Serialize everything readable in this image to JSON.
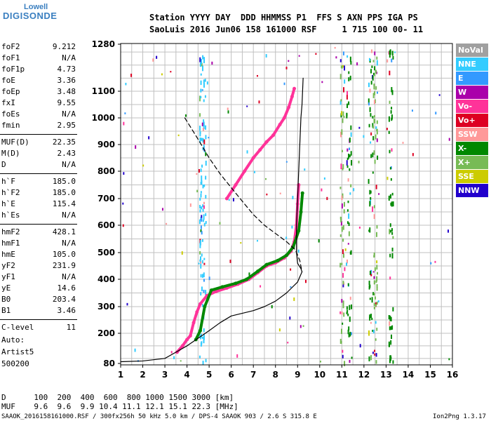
{
  "header": {
    "logo_line1": "Lowell",
    "logo_line2": "DIGISONDE",
    "line1": "Station YYYY DAY  DDD HHMMSS P1  FFS S AXN PPS IGA PS",
    "line2": "SaoLuis 2016 Jun06 158 161000 RSF     1 715 100 00- 11"
  },
  "params": [
    {
      "label": "foF2",
      "value": "9.212"
    },
    {
      "label": "foF1",
      "value": "N/A"
    },
    {
      "label": "foF1p",
      "value": "4.73"
    },
    {
      "label": "foE",
      "value": "3.36"
    },
    {
      "label": "foEp",
      "value": "3.48"
    },
    {
      "label": "fxI",
      "value": "9.55"
    },
    {
      "label": "foEs",
      "value": "N/A"
    },
    {
      "label": "fmin",
      "value": "2.95"
    },
    {
      "label": "MUF(D)",
      "value": "22.35"
    },
    {
      "label": "M(D)",
      "value": "2.43"
    },
    {
      "label": "D",
      "value": "N/A"
    },
    {
      "label": "h`F",
      "value": "185.0"
    },
    {
      "label": "h`F2",
      "value": "185.0"
    },
    {
      "label": "h`E",
      "value": "115.4"
    },
    {
      "label": "h`Es",
      "value": "N/A"
    },
    {
      "label": "hmF2",
      "value": "428.1"
    },
    {
      "label": "hmF1",
      "value": "N/A"
    },
    {
      "label": "hmE",
      "value": "105.0"
    },
    {
      "label": "yF2",
      "value": "231.9"
    },
    {
      "label": "yF1",
      "value": "N/A"
    },
    {
      "label": "yE",
      "value": "14.6"
    },
    {
      "label": "B0",
      "value": "203.4"
    },
    {
      "label": "B1",
      "value": "3.46"
    },
    {
      "label": "C-level",
      "value": "11"
    }
  ],
  "autoscaling": {
    "line1": "Auto:",
    "line2": "Artist5",
    "line3": "500200"
  },
  "legend": [
    {
      "label": "NoVal",
      "color": "#a0a0a0"
    },
    {
      "label": "NNE",
      "color": "#33ccff"
    },
    {
      "label": "E",
      "color": "#3399ff"
    },
    {
      "label": "W",
      "color": "#aa00aa"
    },
    {
      "label": "Vo-",
      "color": "#ff3399"
    },
    {
      "label": "Vo+",
      "color": "#dd0022"
    },
    {
      "label": "SSW",
      "color": "#ff9999"
    },
    {
      "label": "X-",
      "color": "#008800"
    },
    {
      "label": "X+",
      "color": "#77bb55"
    },
    {
      "label": "SSE",
      "color": "#cccc00"
    },
    {
      "label": "NNW",
      "color": "#2200cc"
    }
  ],
  "footer": {
    "d_row": "D      100  200  400  600  800 1000 1500 3000 [km]",
    "muf_row": "MUF    9.6  9.6  9.9 10.4 11.1 12.1 15.1 22.3 [MHz]",
    "file_info": "SAAOK_2016158161000.RSF / 300fx256h 50 kHz 5.0 km / DPS-4 SAAOK 903 / 2.6 S 315.8 E",
    "version": "Ion2Png 1.3.17"
  },
  "chart_data": {
    "type": "scatter",
    "xlim": [
      1,
      16
    ],
    "ylim": [
      80,
      1280
    ],
    "x_ticks": [
      "1",
      "2",
      "3",
      "4",
      "5",
      "6",
      "7",
      "8",
      "9",
      "10",
      "11",
      "12",
      "13",
      "14",
      "15",
      "16"
    ],
    "y_ticks": [
      "80",
      "200",
      "300",
      "400",
      "500",
      "600",
      "700",
      "800",
      "900",
      "1000",
      "1100",
      "1280"
    ],
    "grid": true,
    "series": [
      {
        "name": "O-trace",
        "color": "#ff3399",
        "points": [
          [
            3.55,
            125
          ],
          [
            3.8,
            150
          ],
          [
            4.0,
            175
          ],
          [
            4.15,
            190
          ],
          [
            4.3,
            240
          ],
          [
            4.45,
            280
          ],
          [
            4.6,
            310
          ],
          [
            4.9,
            340
          ],
          [
            5.3,
            355
          ],
          [
            5.8,
            368
          ],
          [
            6.3,
            382
          ],
          [
            6.8,
            400
          ],
          [
            7.2,
            425
          ],
          [
            7.6,
            450
          ],
          [
            8.0,
            462
          ],
          [
            8.4,
            480
          ],
          [
            8.7,
            505
          ],
          [
            8.85,
            540
          ],
          [
            8.95,
            600
          ],
          [
            9.0,
            680
          ],
          [
            9.05,
            750
          ]
        ]
      },
      {
        "name": "X-trace",
        "color": "#008800",
        "points": [
          [
            4.4,
            175
          ],
          [
            4.6,
            210
          ],
          [
            4.8,
            300
          ],
          [
            5.1,
            360
          ],
          [
            5.6,
            372
          ],
          [
            6.2,
            385
          ],
          [
            6.7,
            400
          ],
          [
            7.2,
            430
          ],
          [
            7.6,
            455
          ],
          [
            8.1,
            470
          ],
          [
            8.5,
            490
          ],
          [
            8.8,
            520
          ],
          [
            9.05,
            580
          ],
          [
            9.15,
            650
          ],
          [
            9.22,
            720
          ]
        ]
      },
      {
        "name": "O-upper-trace",
        "color": "#ff3399",
        "points": [
          [
            5.8,
            700
          ],
          [
            6.2,
            750
          ],
          [
            6.6,
            800
          ],
          [
            7.0,
            850
          ],
          [
            7.3,
            880
          ],
          [
            7.6,
            910
          ],
          [
            7.9,
            935
          ],
          [
            8.2,
            975
          ],
          [
            8.4,
            1000
          ],
          [
            8.6,
            1040
          ],
          [
            8.75,
            1080
          ],
          [
            8.85,
            1110
          ]
        ]
      },
      {
        "name": "virtual-height-profile",
        "color": "#000000",
        "points": [
          [
            1,
            87
          ],
          [
            2,
            90
          ],
          [
            3,
            100
          ],
          [
            4,
            150
          ],
          [
            4.5,
            180
          ],
          [
            5,
            210
          ],
          [
            5.5,
            240
          ],
          [
            6,
            265
          ],
          [
            7,
            285
          ],
          [
            7.5,
            300
          ],
          [
            8,
            320
          ],
          [
            8.5,
            350
          ],
          [
            9,
            390
          ],
          [
            9.2,
            428
          ],
          [
            9.15,
            440
          ],
          [
            9.0,
            460
          ],
          [
            8.95,
            500
          ],
          [
            8.95,
            600
          ],
          [
            9.0,
            700
          ],
          [
            9.05,
            800
          ],
          [
            9.1,
            900
          ],
          [
            9.15,
            1000
          ],
          [
            9.2,
            1050
          ],
          [
            9.25,
            1150
          ]
        ]
      },
      {
        "name": "electron-density-profile",
        "color": "#000000",
        "dashed": true,
        "points": [
          [
            3.9,
            1000
          ],
          [
            4.5,
            920
          ],
          [
            5.0,
            850
          ],
          [
            5.5,
            790
          ],
          [
            6.0,
            740
          ],
          [
            6.5,
            690
          ],
          [
            7.0,
            640
          ],
          [
            7.5,
            600
          ],
          [
            8.0,
            570
          ],
          [
            8.5,
            540
          ],
          [
            8.9,
            510
          ],
          [
            9.1,
            470
          ],
          [
            9.2,
            428
          ]
        ]
      }
    ]
  }
}
